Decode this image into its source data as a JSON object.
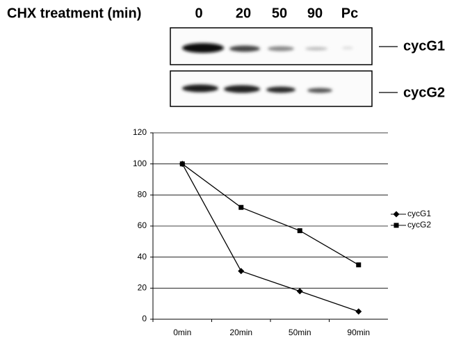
{
  "blot": {
    "title": "CHX treatment (min)",
    "lanes": [
      "0",
      "20",
      "50",
      "90",
      "Pc"
    ],
    "rows": [
      "cycG1",
      "cycG2"
    ]
  },
  "chart_data": {
    "type": "line",
    "categories": [
      "0min",
      "20min",
      "50min",
      "90min"
    ],
    "series": [
      {
        "name": "cycG1",
        "color": "#000000",
        "marker": "diamond",
        "values": [
          100,
          31,
          18,
          5
        ]
      },
      {
        "name": "cycG2",
        "color": "#000000",
        "marker": "square",
        "values": [
          100,
          72,
          57,
          35
        ]
      }
    ],
    "ylim": [
      0,
      120
    ],
    "yticks": [
      0,
      20,
      40,
      60,
      80,
      100,
      120
    ],
    "grid": true,
    "legend": "right"
  }
}
